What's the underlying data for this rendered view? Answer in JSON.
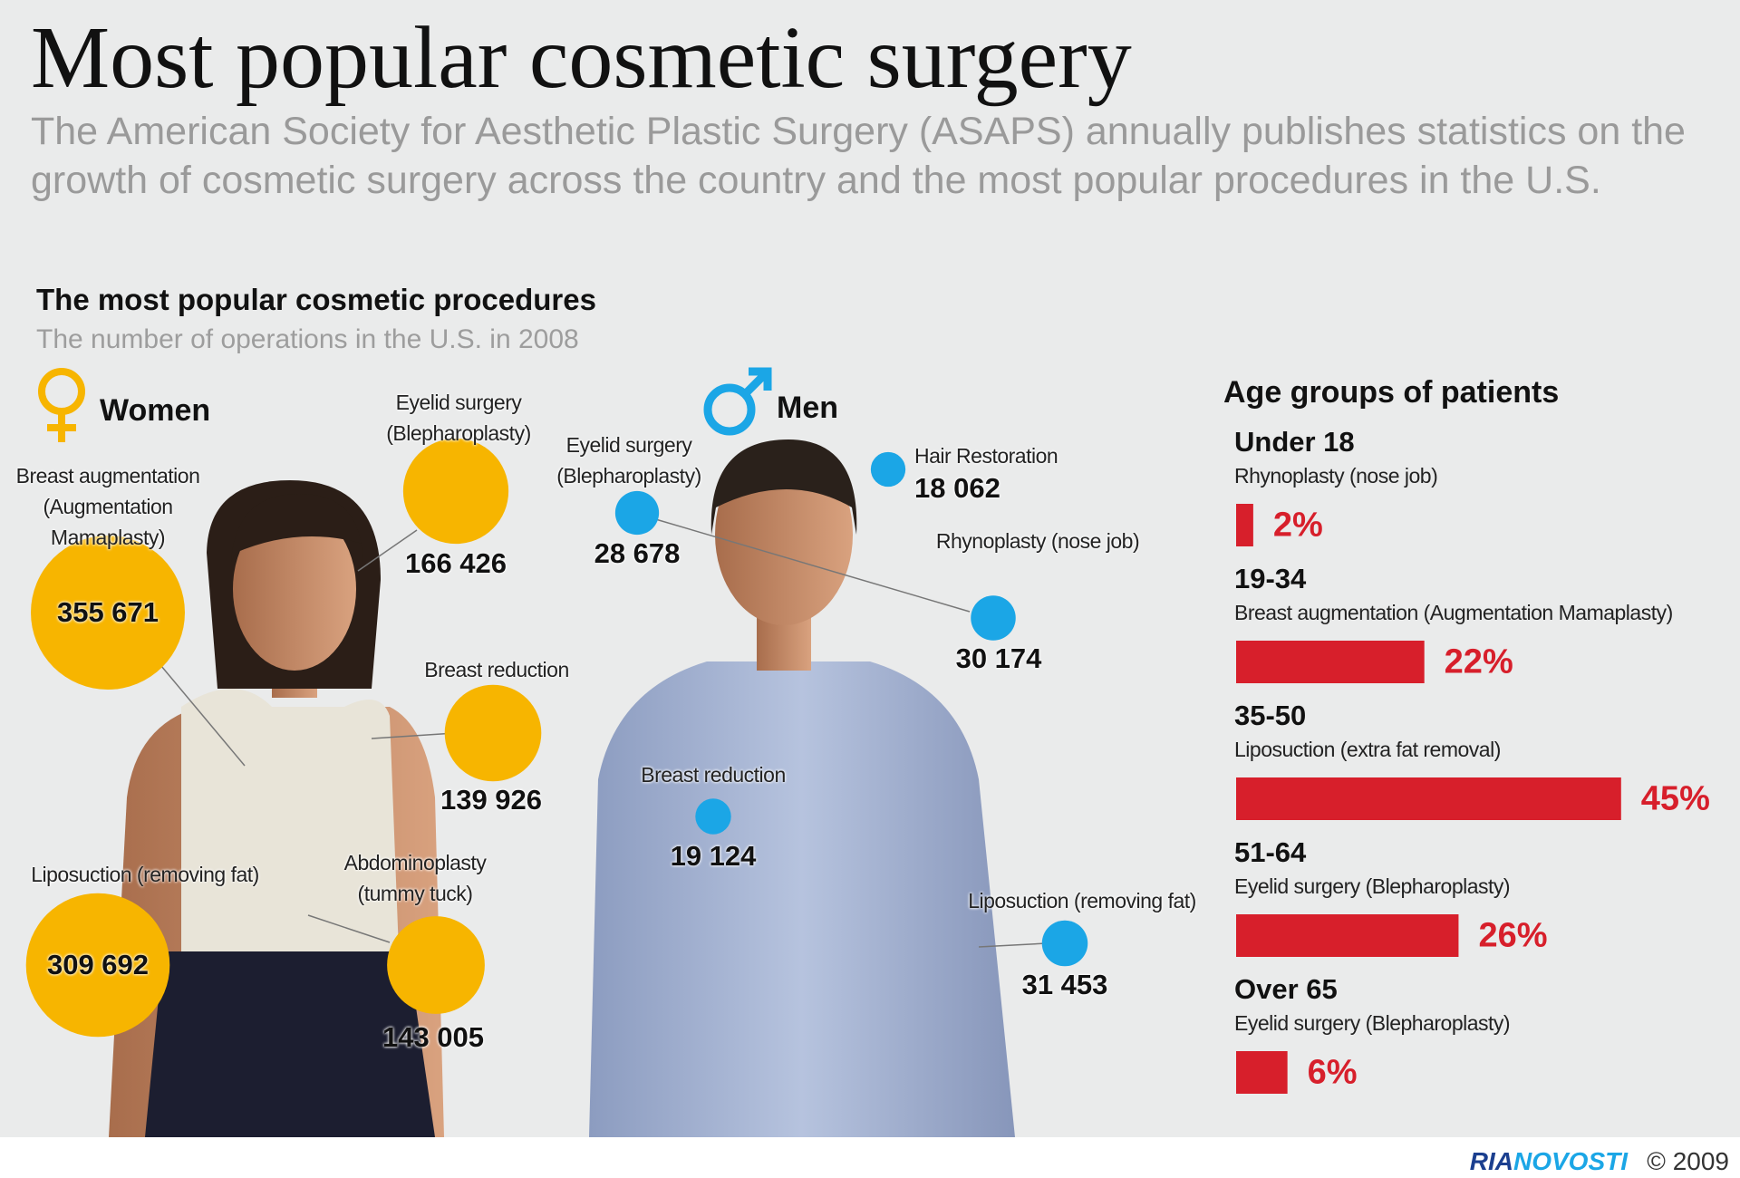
{
  "header": {
    "title": "Most popular cosmetic surgery",
    "description": "The American Society for Aesthetic Plastic Surgery (ASAPS) annually publishes statistics on the growth of cosmetic surgery across the country and the most popular procedures in the U.S.",
    "section_title": "The most popular cosmetic procedures",
    "section_subtitle": "The number of operations in the U.S. in 2008"
  },
  "chart_data": [
    {
      "type": "bubble",
      "title": "Women",
      "color": "#f7b500",
      "categories": [
        "Breast augmentation (Augmentation Mamaplasty)",
        "Eyelid surgery (Blepharoplasty)",
        "Breast reduction",
        "Liposuction (removing fat)",
        "Abdominoplasty (tummy tuck)"
      ],
      "values": [
        355671,
        166426,
        139926,
        309692,
        143005
      ],
      "value_labels": [
        "355 671",
        "166 426",
        "139 926",
        "309 692",
        "143 005"
      ]
    },
    {
      "type": "bubble",
      "title": "Men",
      "color": "#1ba6e6",
      "categories": [
        "Eyelid surgery (Blepharoplasty)",
        "Hair Restoration",
        "Rhynoplasty (nose job)",
        "Breast reduction",
        "Liposuction (removing fat)"
      ],
      "values": [
        28678,
        18062,
        30174,
        19124,
        31453
      ],
      "value_labels": [
        "28 678",
        "18 062",
        "30 174",
        "19 124",
        "31 453"
      ]
    },
    {
      "type": "bar",
      "orientation": "horizontal",
      "title": "Age groups of patients",
      "color": "#d71f2b",
      "categories": [
        "Under 18",
        "19-34",
        "35-50",
        "51-64",
        "Over 65"
      ],
      "procedures": [
        "Rhynoplasty (nose job)",
        "Breast augmentation (Augmentation Mamaplasty)",
        "Liposuction (extra fat removal)",
        "Eyelid surgery (Blepharoplasty)",
        "Eyelid surgery (Blepharoplasty)"
      ],
      "values": [
        2,
        22,
        45,
        26,
        6
      ],
      "value_labels": [
        "2%",
        "22%",
        "45%",
        "26%",
        "6%"
      ]
    }
  ],
  "footer": {
    "brand_1": "RIA",
    "brand_2": "NOVOSTI",
    "copyright": "© 2009"
  }
}
